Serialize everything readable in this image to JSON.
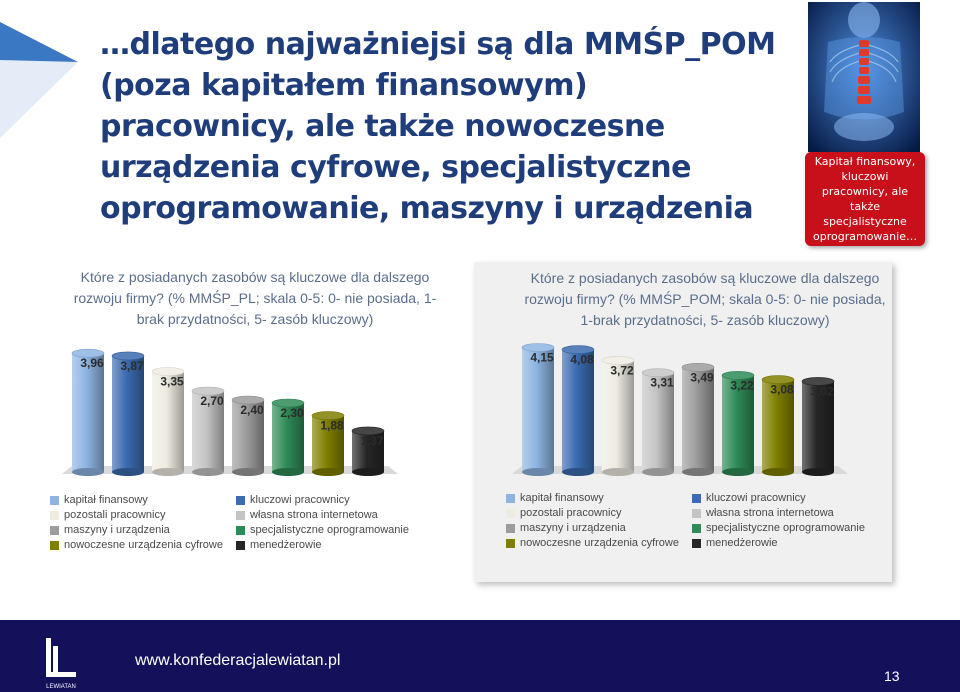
{
  "slide": {
    "title": "…dlatego najważniejsi są dla MMŚP_POM (poza kapitałem finansowym) pracownicy, ale także nowoczesne urządzenia cyfrowe, specjalistyczne oprogramowanie, maszyny i urządzenia",
    "side_note": "Kapitał finansowy, kluczowi pracownicy, ale także specjalistyczne oprogramowanie…",
    "footer_url": "www.konfederacjalewiatan.pl",
    "page_number": "13",
    "logo_text": "LEWIATAN",
    "colors": {
      "title": "#1f3d7a",
      "side_note_bg": "#c7101a",
      "footer_bg": "#13115a",
      "question_text": "#5a6e8c"
    }
  },
  "legend": {
    "items": [
      {
        "label": "kapitał finansowy",
        "color": "#8db4e2"
      },
      {
        "label": "kluczowi pracownicy",
        "color": "#3b6bb0"
      },
      {
        "label": "pozostali pracownicy",
        "color": "#eeece1"
      },
      {
        "label": "własna strona internetowa",
        "color": "#c4c4c4"
      },
      {
        "label": "maszyny i urządzenia",
        "color": "#9c9c9c"
      },
      {
        "label": "specjalistyczne oprogramowanie",
        "color": "#2e8b57"
      },
      {
        "label": "nowoczesne urządzenia cyfrowe",
        "color": "#7f7f00"
      },
      {
        "label": "menedżerowie",
        "color": "#262626"
      }
    ]
  },
  "chart_data": [
    {
      "type": "bar",
      "title": "Które z posiadanych zasobów są kluczowe dla dalszego rozwoju firmy? (% MMŚP_PL; skala 0-5: 0- nie posiada, 1- brak przydatności, 5- zasób kluczowy)",
      "categories": [
        "kapitał finansowy",
        "kluczowi pracownicy",
        "pozostali pracownicy",
        "własna strona internetowa",
        "maszyny i urządzenia",
        "specjalistyczne oprogramowanie",
        "nowoczesne urządzenia cyfrowe",
        "menedżerowie"
      ],
      "values": [
        3.96,
        3.87,
        3.35,
        2.7,
        2.4,
        2.3,
        1.88,
        1.37
      ],
      "labels": [
        "3,96",
        "3,87",
        "3,35",
        "2,70",
        "2,40",
        "2,30",
        "1,88",
        "1,37"
      ],
      "colors": [
        "#8db4e2",
        "#3b6bb0",
        "#eeece1",
        "#c4c4c4",
        "#9c9c9c",
        "#2e8b57",
        "#7f7f00",
        "#262626"
      ],
      "ylim": [
        0,
        5
      ],
      "grid": false,
      "legend": "bottom"
    },
    {
      "type": "bar",
      "title": "Które z posiadanych zasobów są kluczowe dla dalszego rozwoju firmy? (% MMŚP_POM; skala 0-5: 0- nie posiada, 1-brak przydatności, 5- zasób kluczowy)",
      "categories": [
        "kapitał finansowy",
        "kluczowi pracownicy",
        "pozostali pracownicy",
        "własna strona internetowa",
        "maszyny i urządzenia",
        "specjalistyczne oprogramowanie",
        "nowoczesne urządzenia cyfrowe",
        "menedżerowie"
      ],
      "values": [
        4.15,
        4.08,
        3.72,
        3.31,
        3.49,
        3.22,
        3.08,
        3.02
      ],
      "labels": [
        "4,15",
        "4,08",
        "3,72",
        "3,31",
        "3,49",
        "3,22",
        "3,08",
        "3,02"
      ],
      "colors": [
        "#8db4e2",
        "#3b6bb0",
        "#eeece1",
        "#c4c4c4",
        "#9c9c9c",
        "#2e8b57",
        "#7f7f00",
        "#262626"
      ],
      "ylim": [
        0,
        5
      ],
      "grid": false,
      "legend": "bottom"
    }
  ]
}
